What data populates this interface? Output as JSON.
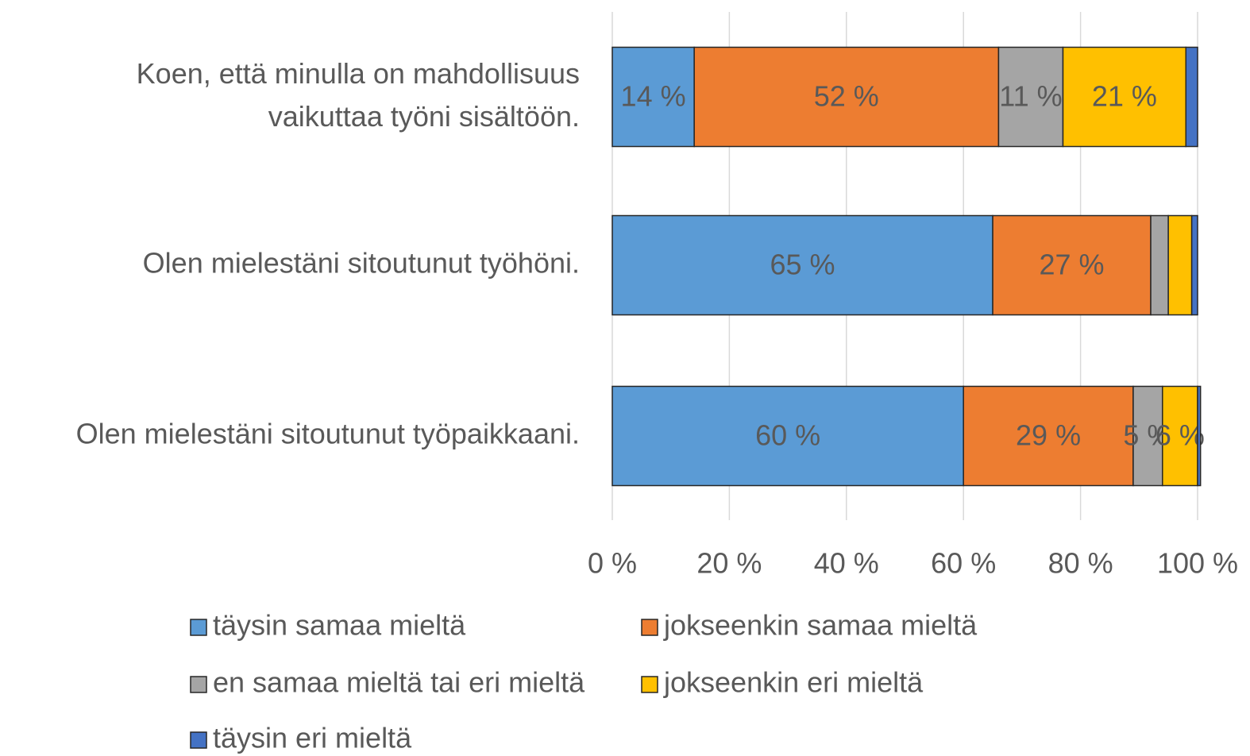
{
  "chart_data": {
    "type": "stacked_barh",
    "categories": [
      "Koen, että minulla on mahdollisuus vaikuttaa työni sisältöön.",
      "Olen mielestäni sitoutunut työhöni.",
      "Olen mielestäni sitoutunut työpaikkaani."
    ],
    "series": [
      {
        "name": "täysin samaa mieltä",
        "color": "#5b9bd5",
        "values": [
          14,
          65,
          60
        ],
        "value_labels": [
          "14 %",
          "65 %",
          "60 %"
        ]
      },
      {
        "name": "jokseenkin samaa mieltä",
        "color": "#ed7d31",
        "values": [
          52,
          27,
          29
        ],
        "value_labels": [
          "52 %",
          "27 %",
          "29 %"
        ]
      },
      {
        "name": "en samaa mieltä tai eri mieltä",
        "color": "#a5a5a5",
        "values": [
          11,
          3,
          5
        ],
        "value_labels": [
          "11 %",
          null,
          "5 %"
        ]
      },
      {
        "name": "jokseenkin eri mieltä",
        "color": "#ffc000",
        "values": [
          21,
          4,
          6
        ],
        "value_labels": [
          "21 %",
          null,
          "6 %"
        ]
      },
      {
        "name": "täysin eri mieltä",
        "color": "#4472c4",
        "values": [
          2,
          1,
          0.5
        ],
        "value_labels": [
          null,
          null,
          null
        ]
      }
    ],
    "xlim": [
      0,
      100
    ],
    "xticks": [
      {
        "value": 0,
        "label": "0 %"
      },
      {
        "value": 20,
        "label": "20 %"
      },
      {
        "value": 40,
        "label": "40 %"
      },
      {
        "value": 60,
        "label": "60 %"
      },
      {
        "value": 80,
        "label": "80 %"
      },
      {
        "value": 100,
        "label": "100 %"
      }
    ],
    "grid": true,
    "legend": "bottom"
  }
}
